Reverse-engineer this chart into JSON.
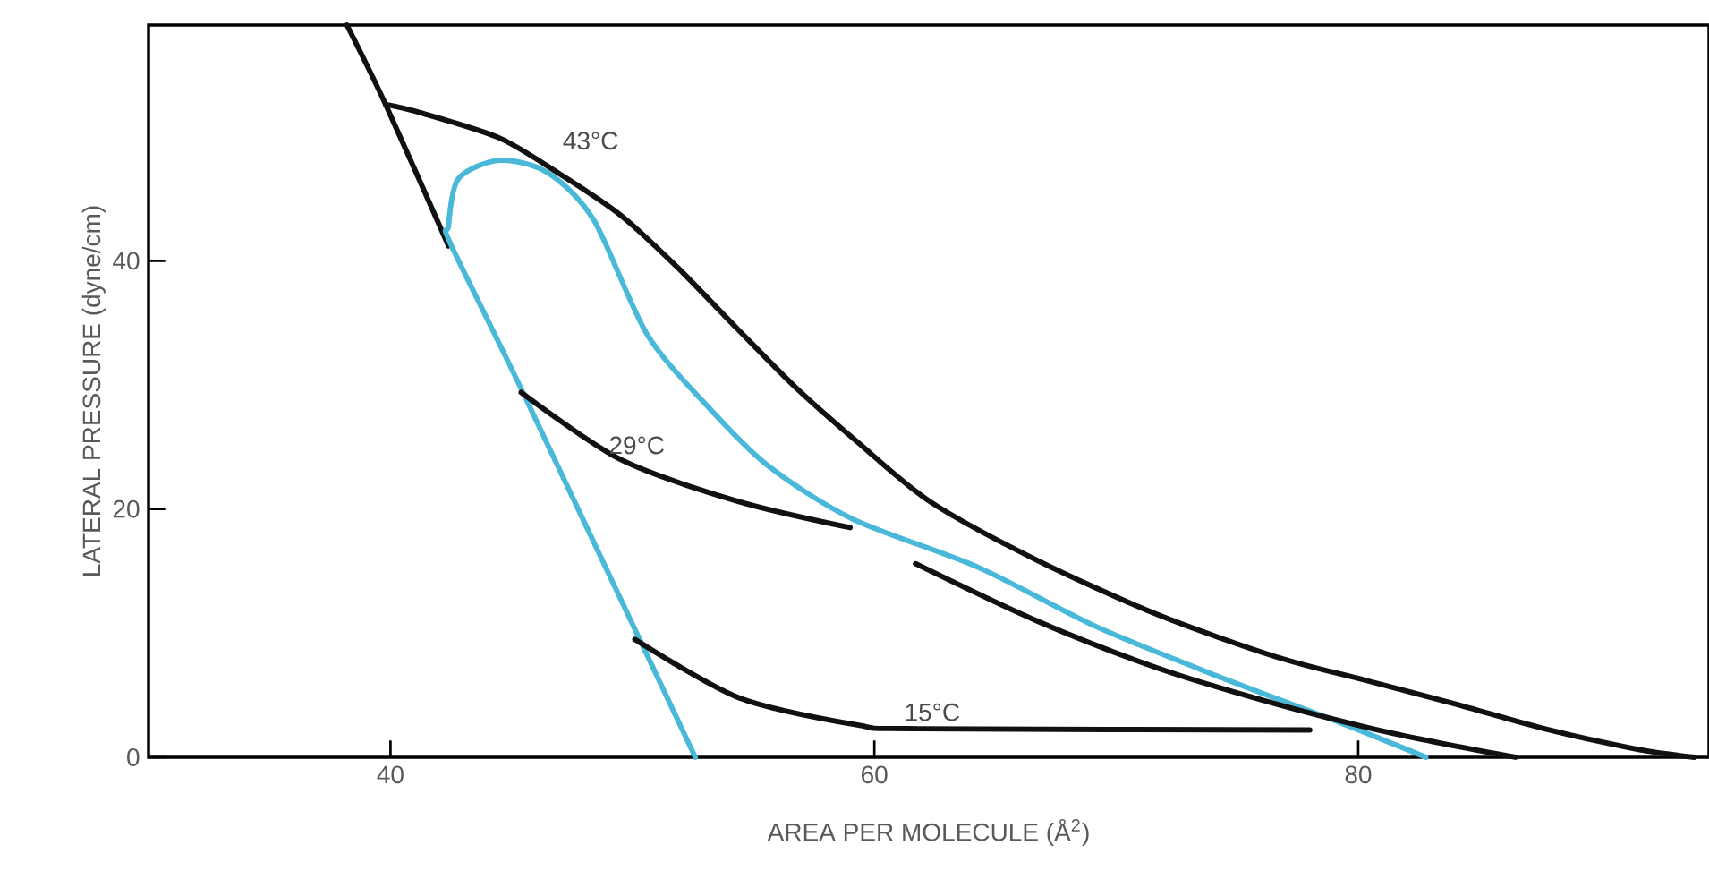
{
  "chart_data": {
    "type": "line",
    "xlabel": "AREA PER MOLECULE   (Å$^{2}$)",
    "ylabel": "LATERAL PRESSURE (dyne/cm)",
    "xlim": [
      30,
      94.5
    ],
    "ylim": [
      0,
      59
    ],
    "xticks": [
      40,
      60,
      80
    ],
    "yticks": [
      0,
      20,
      40
    ],
    "series": [
      {
        "color": "#111111",
        "x": [
          38.2,
          39.8,
          42.4
        ],
        "values": [
          59,
          52.6,
          41.2
        ]
      },
      {
        "name": "43°C",
        "color": "#111111",
        "x": [
          39.8,
          41.3,
          44.5,
          47,
          49.5,
          51.9,
          54.3,
          56.8,
          59.3,
          62.3,
          66.7,
          71.7,
          76.6,
          80.3,
          84,
          87.7,
          91.4,
          93.9
        ],
        "values": [
          52.6,
          51.9,
          49.9,
          47,
          43.7,
          39.4,
          34.6,
          29.7,
          25.4,
          20.6,
          15.9,
          11.5,
          8.1,
          6.2,
          4.3,
          2.3,
          0.7,
          0
        ]
      },
      {
        "color": "#4ab8d8",
        "x": [
          52.6,
          45.5,
          42.5,
          42.4,
          42.8,
          44.5,
          46.5,
          48.4,
          50.6,
          53.1,
          55.6,
          59.1,
          64.3,
          69.2,
          74.1,
          79.1,
          82.8
        ],
        "values": [
          0,
          29.3,
          41.3,
          42.8,
          46.6,
          48.1,
          47.1,
          43.3,
          34.1,
          28.3,
          23.5,
          19.2,
          15.3,
          10.5,
          6.6,
          2.9,
          0
        ]
      },
      {
        "name": "29°C",
        "color": "#111111",
        "x": [
          45.4,
          49.5,
          54.4,
          59
        ],
        "values": [
          29.4,
          24,
          20.6,
          18.5
        ]
      },
      {
        "color": "#111111",
        "x": [
          61.7,
          66.7,
          71.7,
          76.6,
          81.5,
          86.5
        ],
        "values": [
          15.6,
          11,
          7.2,
          4.3,
          1.9,
          0
        ]
      },
      {
        "name": "15°C",
        "color": "#111111",
        "x": [
          50.1,
          54.4,
          59.3,
          61.8,
          78
        ],
        "values": [
          9.5,
          4.8,
          2.6,
          2.3,
          2.2
        ]
      }
    ]
  }
}
